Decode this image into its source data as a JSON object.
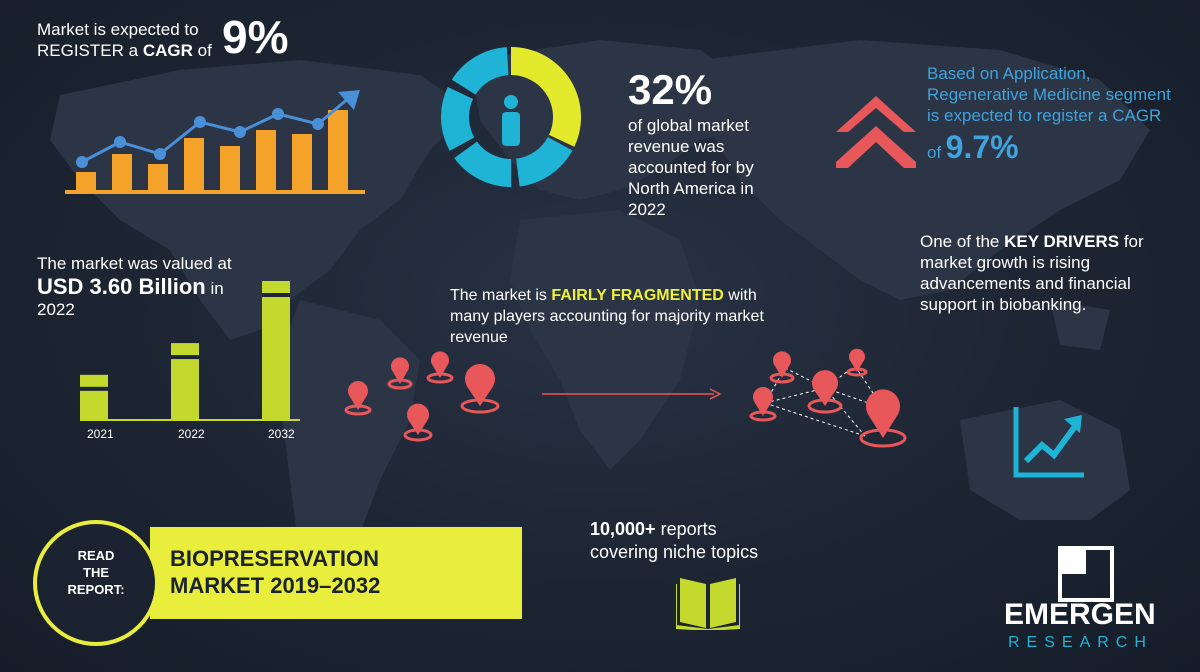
{
  "cagr": {
    "line1": "Market is expected to",
    "line2_prefix": "REGISTER a",
    "line2_bold": "CAGR",
    "line2_suffix": "of",
    "value": "9%"
  },
  "donut": {
    "percent": "32%",
    "description_lines": [
      "of global market",
      "revenue was",
      "accounted for by",
      "North America in",
      "2022"
    ],
    "share": 0.32,
    "colors": {
      "highlight": "#e3ea2c",
      "rest": "#1fb3d6"
    }
  },
  "application": {
    "lines": [
      "Based on Application,",
      "Regenerative Medicine segment",
      "is expected to register a CAGR"
    ],
    "of_label": "of",
    "value": "9.7%"
  },
  "valuation": {
    "line1": "The market was valued at",
    "value": "USD 3.60 Billion",
    "suffix": "in",
    "year": "2022",
    "bars": [
      {
        "year": "2021",
        "level": 0.32
      },
      {
        "year": "2022",
        "level": 0.55
      },
      {
        "year": "2032",
        "level": 1.0
      }
    ],
    "bar_color": "#c4d92e"
  },
  "fragmented": {
    "prefix": "The market is",
    "highlight": "FAIRLY FRAGMENTED",
    "suffix": "with",
    "line2": "many players accounting for majority market",
    "line3": "revenue"
  },
  "drivers": {
    "prefix": "One of the",
    "highlight": "KEY DRIVERS",
    "suffix": "for",
    "lines": [
      "market growth is rising",
      "advancements and financial",
      "support in biobanking."
    ]
  },
  "read_report": {
    "label_lines": [
      "READ",
      "THE",
      "REPORT:"
    ],
    "title_lines": [
      "BIOPRESERVATION",
      "MARKET 2019–2032"
    ]
  },
  "reports": {
    "bold": "10,000+",
    "line1_suffix": "reports",
    "line2": "covering niche topics"
  },
  "logo": {
    "name": "EMERGEN",
    "sub": "RESEARCH"
  },
  "colors": {
    "accent_yellow": "#e9ee3c",
    "accent_blue": "#3fa3dc",
    "pin_red": "#e8575a",
    "bar_orange": "#f5a22a",
    "line_blue": "#4a90d9"
  },
  "icons": [
    "growth-chart-icon",
    "person-icon",
    "double-chevron-up-icon",
    "map-pin-icon",
    "arrow-right-icon",
    "trend-up-icon",
    "open-book-icon",
    "logo-icon"
  ]
}
